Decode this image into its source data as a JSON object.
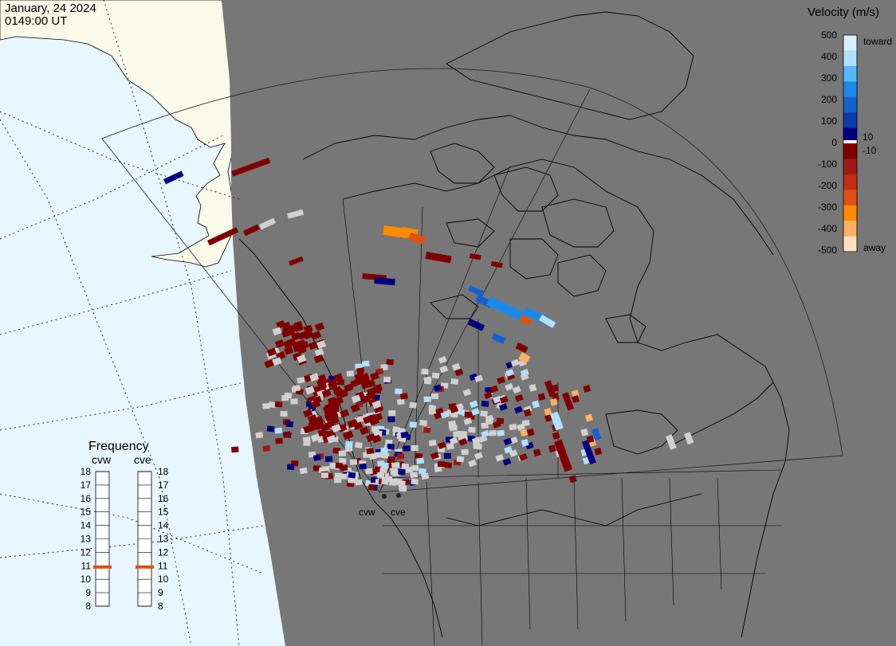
{
  "header": {
    "date": "January, 24 2024",
    "time": "0149:00 UT"
  },
  "legend": {
    "title": "Velocity (m/s)",
    "ticks": [
      "500",
      "400",
      "300",
      "200",
      "100",
      "0",
      "-100",
      "-200",
      "-300",
      "-400",
      "-500"
    ],
    "small_ticks": [
      "10",
      "-10"
    ],
    "toward": "toward",
    "away": "away",
    "colors": [
      "#d8f0ff",
      "#b0e0ff",
      "#58b8ff",
      "#1e88e8",
      "#1460d0",
      "#0a3ca8",
      "#000080",
      "#800000",
      "#a01818",
      "#c03010",
      "#e05010",
      "#ff8c00",
      "#ffb060",
      "#ffe0c0"
    ]
  },
  "frequency": {
    "title": "Frequency",
    "radars": [
      {
        "name": "cvw",
        "value": 11
      },
      {
        "name": "cve",
        "value": 11
      }
    ],
    "scale": [
      "18",
      "17",
      "16",
      "15",
      "14",
      "13",
      "12",
      "11",
      "10",
      "9",
      "8"
    ]
  },
  "sites": [
    {
      "name": "cvw"
    },
    {
      "name": "cve"
    }
  ],
  "map": {
    "land_color": "#777777",
    "ocean_color": "#e8f6ff",
    "daylit_land_color": "#fafaea",
    "gs_color": "#d0d0d0"
  }
}
